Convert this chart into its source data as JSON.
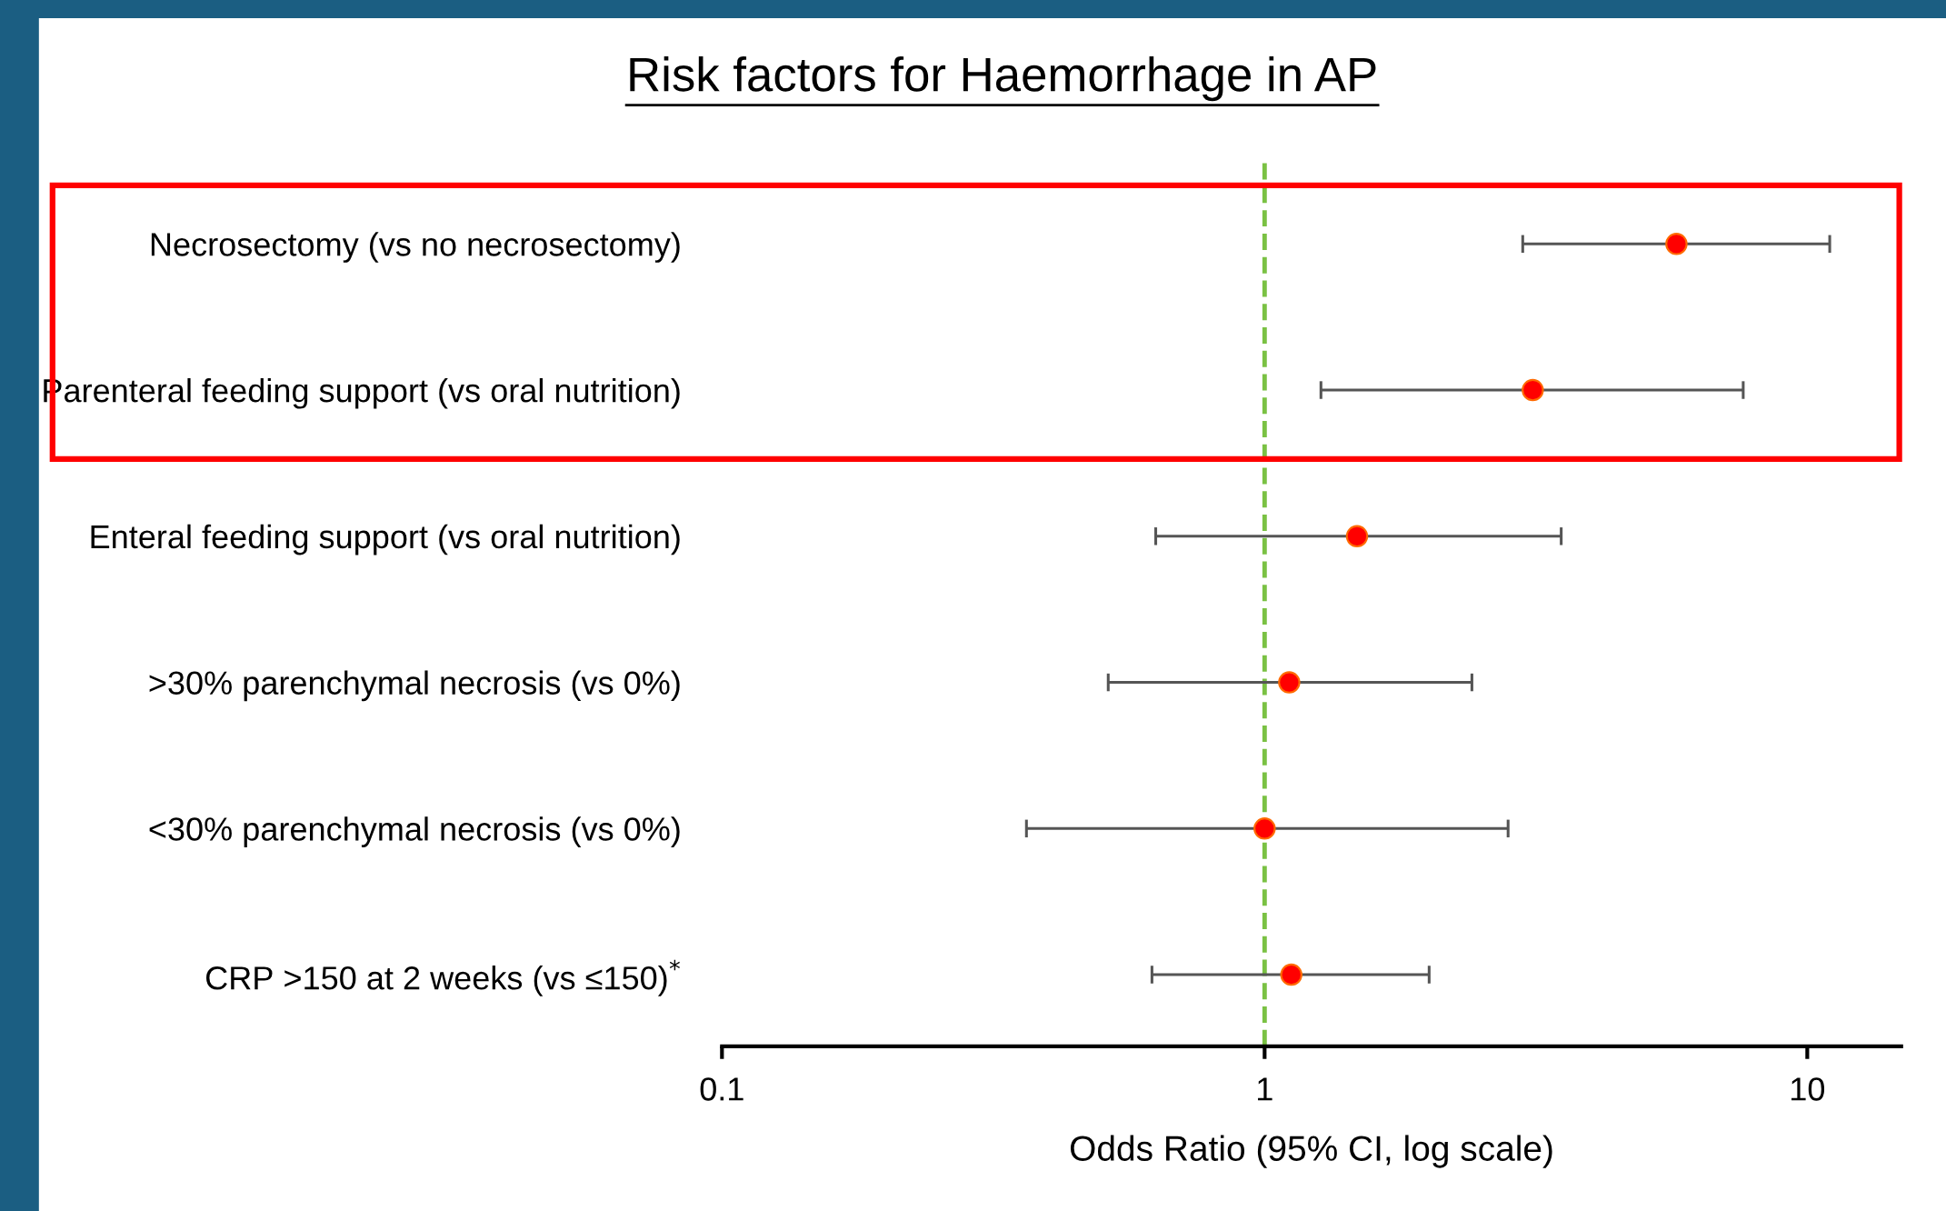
{
  "chart_data": {
    "type": "scatter",
    "title": "Risk factors for Haemorrhage in AP",
    "xlabel": "Odds Ratio (95% CI, log scale)",
    "categories": [
      "Necrosectomy (vs no necrosectomy)",
      "Parenteral feeding support (vs oral nutrition)",
      "Enteral feeding support (vs oral nutrition)",
      ">30% parenchymal necrosis (vs 0%)",
      "<30% parenchymal necrosis (vs 0%)",
      "CRP >150 at 2 weeks (vs ≤150)$^{*}$"
    ],
    "orientation": "horizontal",
    "series": [
      {
        "color": "#ff0000",
        "values": [
          5.74,
          3.12,
          1.48,
          1.11,
          1.0,
          1.12
        ],
        "errors": [
          [
            2.99,
            11.0
          ],
          [
            1.27,
            7.62
          ],
          [
            0.63,
            3.52
          ],
          [
            0.515,
            2.41
          ],
          [
            0.364,
            2.81
          ],
          [
            0.62,
            2.01
          ]
        ]
      }
    ],
    "log": "x",
    "xlim": [
      0.1,
      14.9
    ],
    "xticks": [
      0.1,
      1,
      10
    ],
    "marker": "circle",
    "grid": false,
    "ref_lines": [
      {
        "axis": "x",
        "value": 1,
        "color": "#7ac143",
        "line_style": "dashed"
      }
    ]
  }
}
